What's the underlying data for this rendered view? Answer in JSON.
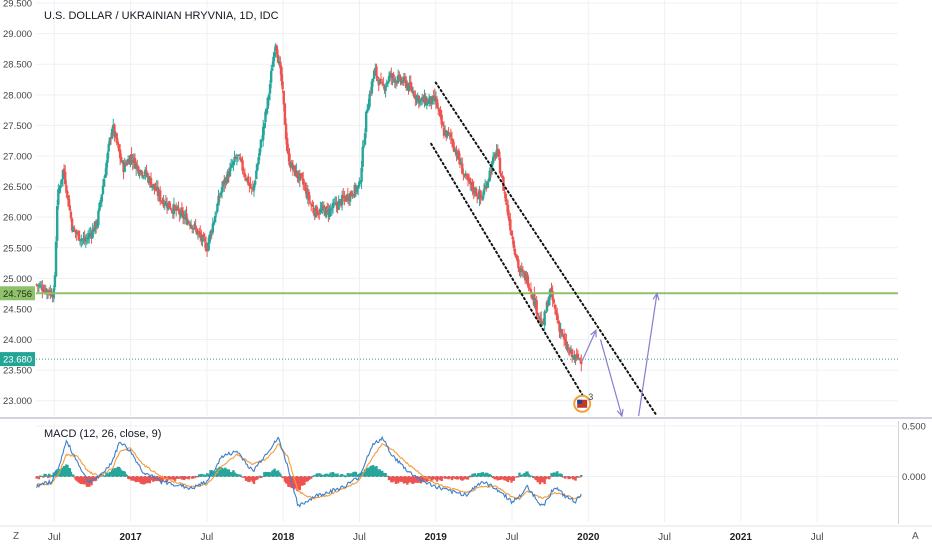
{
  "title": "U.S. DOLLAR / UKRAINIAN HRYVNIA, 1D, IDC",
  "corner_left": "Z",
  "corner_right": "A",
  "colors": {
    "up": "#26a69a",
    "down": "#ef5350",
    "support": "#8fc06a",
    "current": "#22a594",
    "arrow": "#8a7ccf",
    "macd": "#3d7ec9",
    "signal": "#f39c3c",
    "grid": "#eef0f3"
  },
  "price_axis": {
    "ticks": [
      "29.500",
      "29.000",
      "28.500",
      "28.000",
      "27.500",
      "27.000",
      "26.500",
      "26.000",
      "25.500",
      "25.000",
      "24.500",
      "24.000",
      "23.500",
      "23.000"
    ],
    "tick_values": [
      29.5,
      29.0,
      28.5,
      28.0,
      27.5,
      27.0,
      26.5,
      26.0,
      25.5,
      25.0,
      24.5,
      24.0,
      23.5,
      23.0
    ],
    "ylim": [
      22.75,
      29.55
    ]
  },
  "time_axis": {
    "labels": [
      "Jul",
      "2017",
      "Jul",
      "2018",
      "Jul",
      "2019",
      "Jul",
      "2020",
      "Jul",
      "2021",
      "Jul"
    ],
    "positions": [
      2016.5,
      2017.0,
      2017.5,
      2018.0,
      2018.5,
      2019.0,
      2019.5,
      2020.0,
      2020.5,
      2021.0,
      2021.5
    ],
    "bold": [
      false,
      true,
      false,
      true,
      false,
      true,
      false,
      true,
      false,
      true,
      false
    ],
    "xlim": [
      2016.38,
      2022.03
    ]
  },
  "levels": {
    "support": {
      "value": 24.756,
      "label": "24.756"
    },
    "current": {
      "value": 23.68,
      "label": "23.680"
    }
  },
  "event_badge": {
    "count": "3"
  },
  "chart_data": {
    "type": "candlestick",
    "title": "U.S. DOLLAR / UKRAINIAN HRYVNIA, 1D, IDC",
    "anchors": {
      "x": [
        2016.38,
        2016.46,
        2016.5,
        2016.52,
        2016.56,
        2016.62,
        2016.7,
        2016.78,
        2016.88,
        2016.95,
        2017.0,
        2017.05,
        2017.1,
        2017.2,
        2017.3,
        2017.4,
        2017.5,
        2017.6,
        2017.7,
        2017.8,
        2017.9,
        2017.95,
        2017.99,
        2018.03,
        2018.06,
        2018.12,
        2018.2,
        2018.3,
        2018.4,
        2018.5,
        2018.55,
        2018.6,
        2018.65,
        2018.7,
        2018.8,
        2018.9,
        2019.0,
        2019.05,
        2019.1,
        2019.2,
        2019.3,
        2019.4,
        2019.5,
        2019.55,
        2019.6,
        2019.7,
        2019.75,
        2019.8,
        2019.85,
        2019.9,
        2019.96
      ],
      "close": [
        24.9,
        24.8,
        24.75,
        26.3,
        26.8,
        25.8,
        25.6,
        25.9,
        27.5,
        26.8,
        27.0,
        26.8,
        26.7,
        26.3,
        26.1,
        25.9,
        25.5,
        26.5,
        27.0,
        26.4,
        27.9,
        28.9,
        28.2,
        27.0,
        26.8,
        26.6,
        26.1,
        26.1,
        26.3,
        26.5,
        27.8,
        28.4,
        28.1,
        28.3,
        28.2,
        27.9,
        27.9,
        27.4,
        27.3,
        26.6,
        26.3,
        27.1,
        25.7,
        25.1,
        25.0,
        24.2,
        24.8,
        24.3,
        23.9,
        23.7,
        23.68
      ],
      "low": [
        24.85,
        24.7,
        24.7,
        24.7,
        26.5,
        25.6,
        25.5,
        25.7,
        27.0,
        26.7,
        26.9,
        26.7,
        26.6,
        26.2,
        26.0,
        25.8,
        25.4,
        26.3,
        26.8,
        26.3,
        27.6,
        28.6,
        27.9,
        26.8,
        26.6,
        26.5,
        25.9,
        26.0,
        26.1,
        26.2,
        27.6,
        28.1,
        27.8,
        28.1,
        28.0,
        27.6,
        27.6,
        27.2,
        27.0,
        26.4,
        26.1,
        26.9,
        25.4,
        24.8,
        24.8,
        23.9,
        24.5,
        24.0,
        23.6,
        23.1,
        23.3
      ],
      "high": [
        24.95,
        24.9,
        24.8,
        26.5,
        26.9,
        26.0,
        25.8,
        26.1,
        27.7,
        27.0,
        27.1,
        27.0,
        26.9,
        26.5,
        26.3,
        26.1,
        25.7,
        26.7,
        27.2,
        26.6,
        28.1,
        28.9,
        28.3,
        27.2,
        27.0,
        26.8,
        26.3,
        26.2,
        26.5,
        26.7,
        28.1,
        28.5,
        28.3,
        28.5,
        28.4,
        28.1,
        28.2,
        27.6,
        27.5,
        26.8,
        26.5,
        27.3,
        25.9,
        25.3,
        25.2,
        24.5,
        25.1,
        24.6,
        24.2,
        24.0,
        23.8
      ]
    },
    "trend_channel": {
      "upper": {
        "from": [
          2019.0,
          28.2
        ],
        "to": [
          2020.45,
          22.75
        ]
      },
      "lower": {
        "from": [
          2018.97,
          27.2
        ],
        "to": [
          2019.96,
          23.1
        ]
      }
    },
    "projection_arrows": [
      {
        "points": [
          [
            2019.96,
            23.65
          ],
          [
            2020.05,
            24.15
          ]
        ]
      },
      {
        "points": [
          [
            2020.08,
            24.0
          ],
          [
            2020.22,
            22.75
          ]
        ]
      },
      {
        "points": [
          [
            2020.33,
            22.75
          ],
          [
            2020.45,
            24.75
          ]
        ]
      }
    ],
    "indicator": {
      "label": "MACD (12, 26, close, 9)",
      "ticks": [
        "0.500",
        "0.000"
      ],
      "tick_values": [
        0.5,
        0.0
      ],
      "ylim": [
        -0.45,
        0.55
      ],
      "anchors": {
        "x": [
          2016.38,
          2016.48,
          2016.53,
          2016.58,
          2016.65,
          2016.72,
          2016.8,
          2016.88,
          2016.93,
          2017.0,
          2017.08,
          2017.2,
          2017.3,
          2017.4,
          2017.5,
          2017.6,
          2017.7,
          2017.8,
          2017.9,
          2017.97,
          2018.03,
          2018.1,
          2018.2,
          2018.3,
          2018.4,
          2018.5,
          2018.58,
          2018.65,
          2018.72,
          2018.82,
          2018.92,
          2019.0,
          2019.1,
          2019.2,
          2019.3,
          2019.4,
          2019.5,
          2019.55,
          2019.6,
          2019.7,
          2019.78,
          2019.85,
          2019.92,
          2019.96
        ],
        "macd": [
          -0.1,
          -0.05,
          0.1,
          0.35,
          0.15,
          -0.05,
          0.0,
          0.15,
          0.35,
          0.25,
          0.05,
          -0.05,
          -0.08,
          -0.12,
          -0.05,
          0.2,
          0.25,
          0.05,
          0.25,
          0.38,
          0.1,
          -0.3,
          -0.2,
          -0.15,
          -0.1,
          0.0,
          0.3,
          0.38,
          0.2,
          0.05,
          -0.05,
          -0.1,
          -0.15,
          -0.18,
          -0.05,
          -0.12,
          -0.25,
          -0.2,
          -0.1,
          -0.3,
          -0.1,
          -0.2,
          -0.25,
          -0.15
        ],
        "signal": [
          -0.08,
          -0.07,
          0.03,
          0.22,
          0.2,
          0.05,
          0.0,
          0.08,
          0.25,
          0.28,
          0.12,
          0.0,
          -0.06,
          -0.1,
          -0.08,
          0.1,
          0.22,
          0.12,
          0.18,
          0.32,
          0.2,
          -0.15,
          -0.22,
          -0.18,
          -0.12,
          -0.04,
          0.18,
          0.33,
          0.26,
          0.12,
          0.0,
          -0.07,
          -0.12,
          -0.16,
          -0.1,
          -0.1,
          -0.2,
          -0.22,
          -0.14,
          -0.22,
          -0.16,
          -0.18,
          -0.22,
          -0.18
        ]
      }
    }
  }
}
